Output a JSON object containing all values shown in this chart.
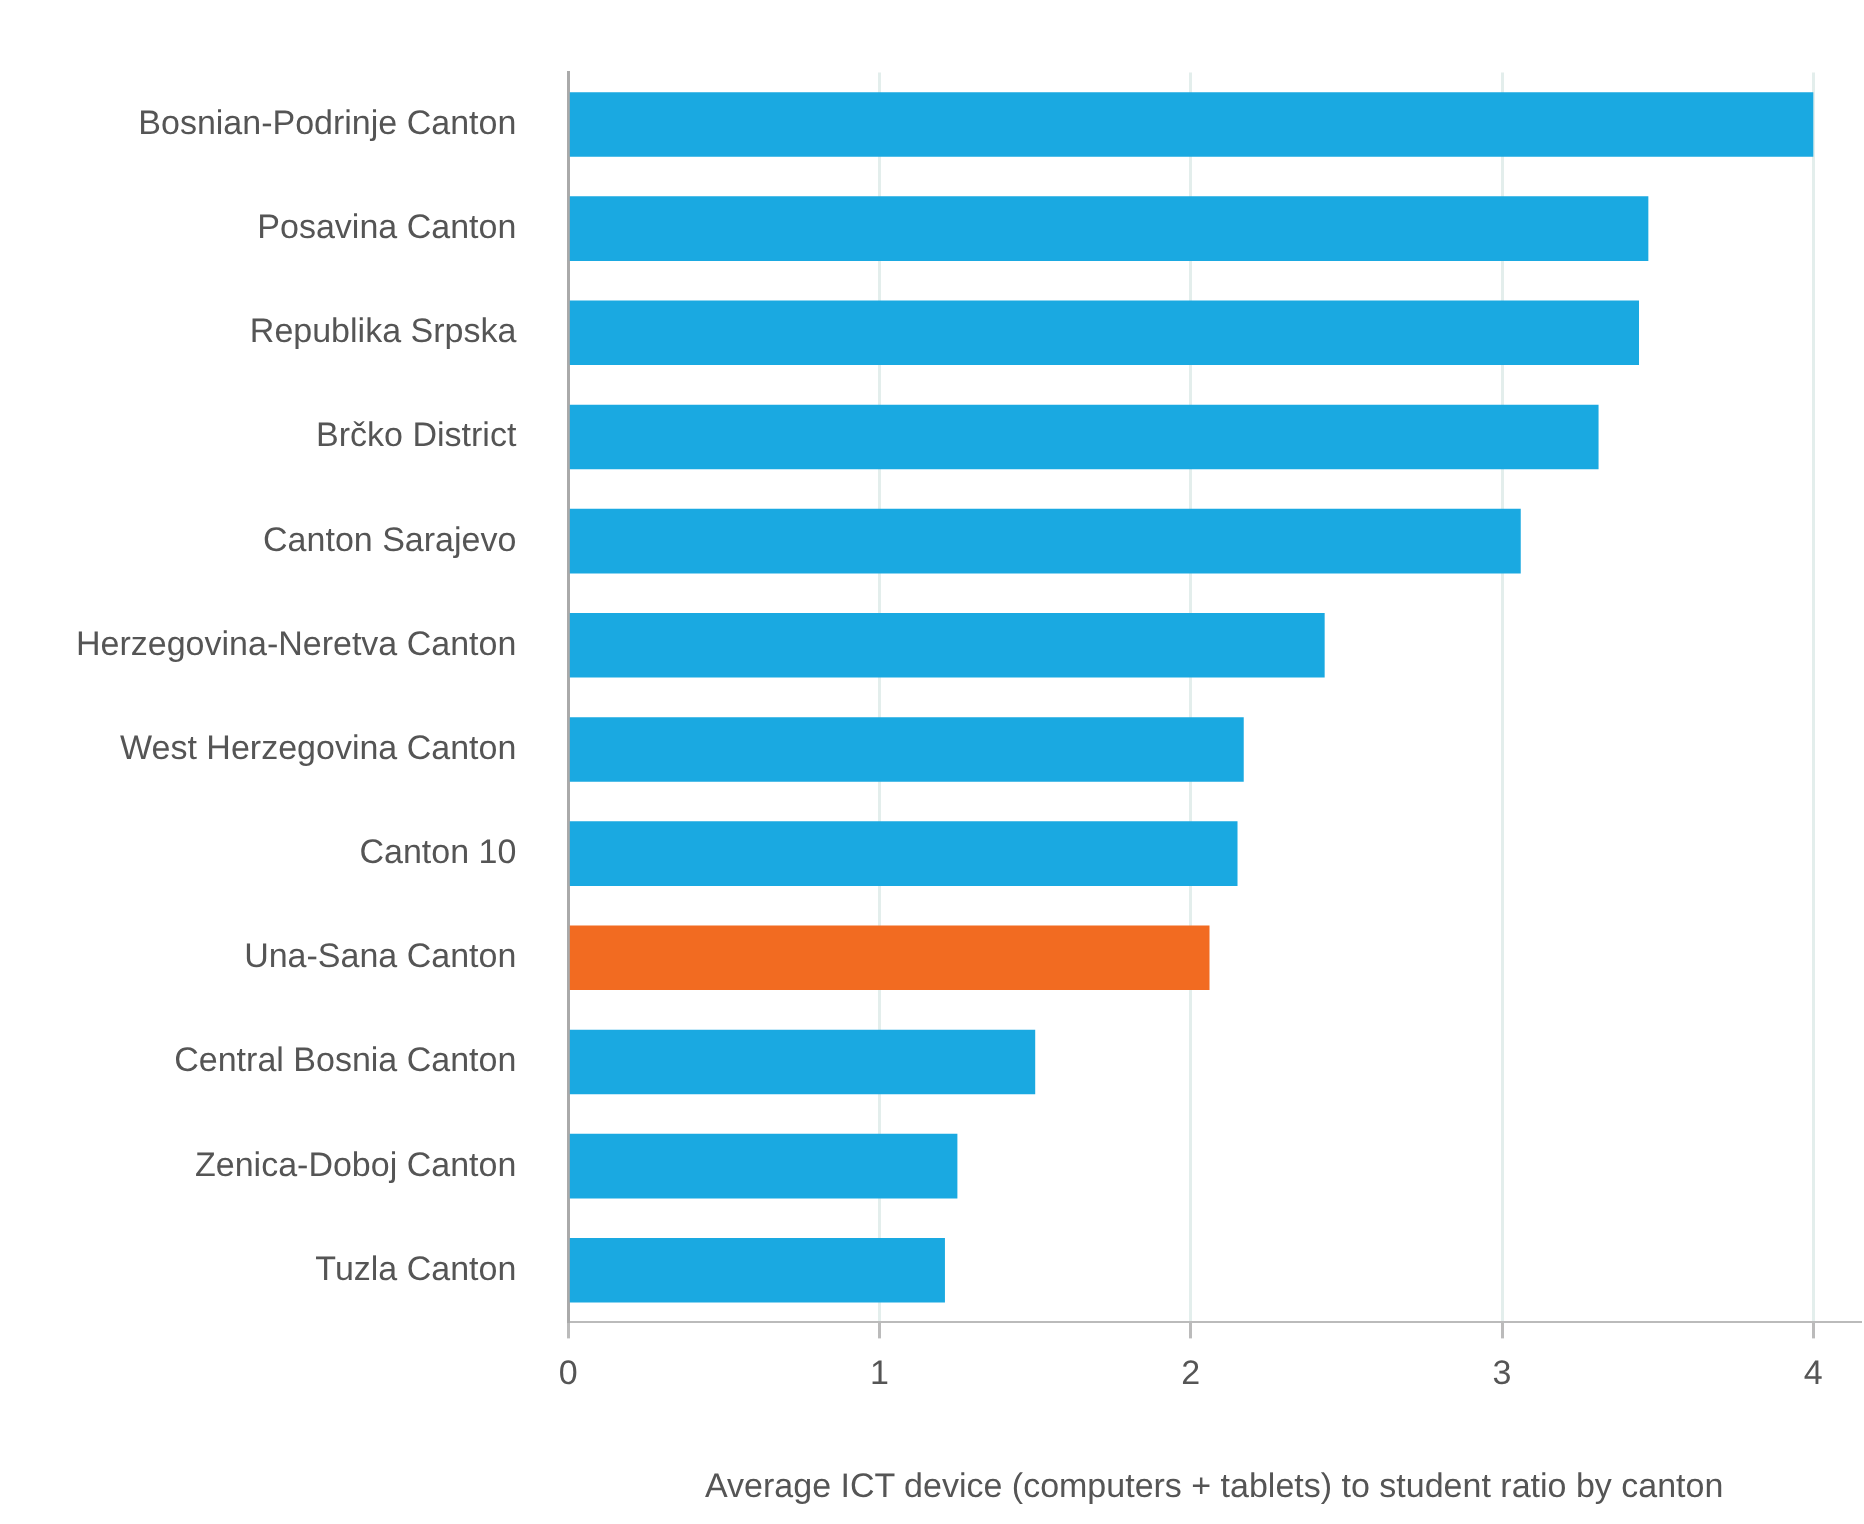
{
  "chart_data": {
    "type": "bar",
    "orientation": "horizontal",
    "xlabel": "Average ICT device (computers + tablets) to student ratio by canton",
    "categories": [
      "Bosnian-Podrinje Canton",
      "Posavina Canton",
      "Republika Srpska",
      "Brčko District",
      "Canton Sarajevo",
      "Herzegovina-Neretva Canton",
      "West Herzegovina Canton",
      "Canton 10",
      "Una-Sana Canton",
      "Central Bosnia Canton",
      "Zenica-Doboj Canton",
      "Tuzla Canton"
    ],
    "values": [
      4.0,
      3.47,
      3.44,
      3.31,
      3.06,
      2.43,
      2.17,
      2.15,
      2.06,
      1.5,
      1.25,
      1.21
    ],
    "colors": [
      "#1aa9e1",
      "#1aa9e1",
      "#1aa9e1",
      "#1aa9e1",
      "#1aa9e1",
      "#1aa9e1",
      "#1aa9e1",
      "#1aa9e1",
      "#f26b21",
      "#1aa9e1",
      "#1aa9e1",
      "#1aa9e1"
    ],
    "xlim": [
      0,
      4.15
    ],
    "xticks": [
      0,
      1,
      2,
      3,
      4
    ],
    "grid": "x",
    "legend": false
  }
}
